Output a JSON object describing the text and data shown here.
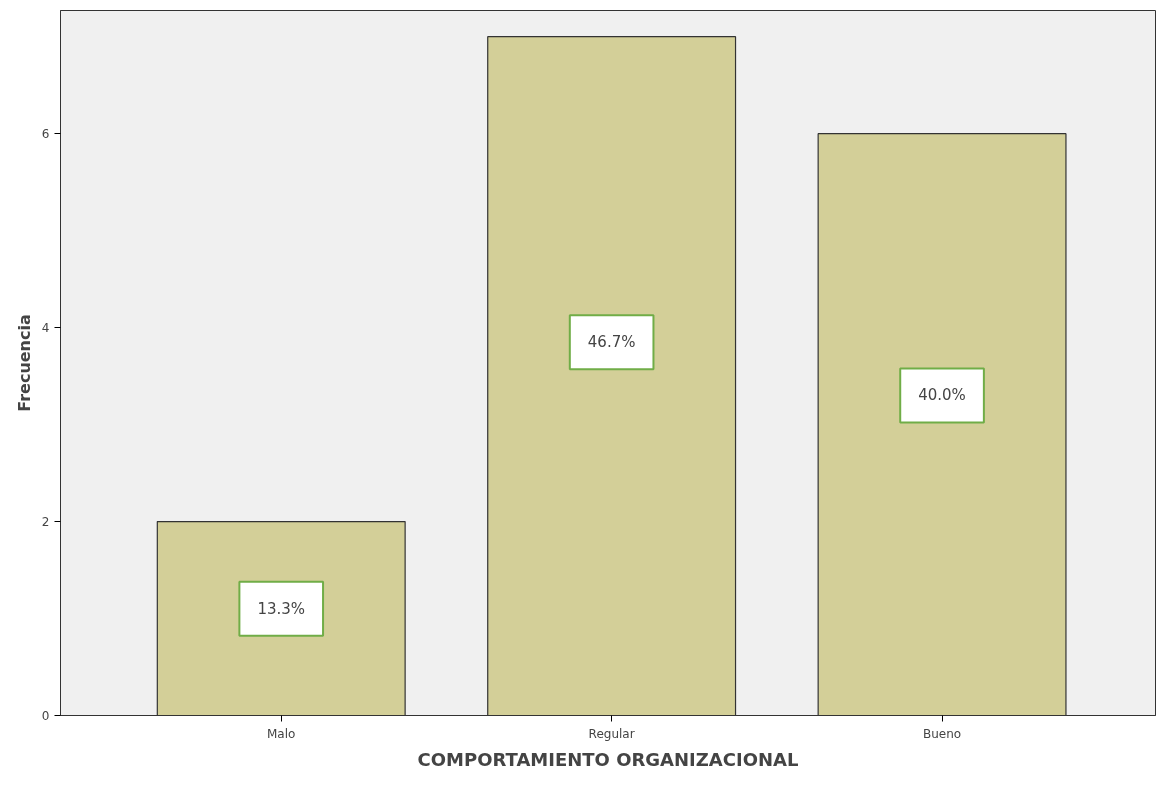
{
  "chart_data": {
    "type": "bar",
    "xlabel": "COMPORTAMIENTO ORGANIZACIONAL",
    "ylabel": "Frecuencia",
    "categories": [
      "Malo",
      "Regular",
      "Bueno"
    ],
    "values": [
      2,
      7,
      6
    ],
    "annotations": [
      "13.3%",
      "46.7%",
      "40.0%"
    ],
    "color": "#d3cf98",
    "ylim": [
      0,
      7.27
    ],
    "yticks": [
      0,
      2,
      4,
      6
    ],
    "grid": false
  }
}
